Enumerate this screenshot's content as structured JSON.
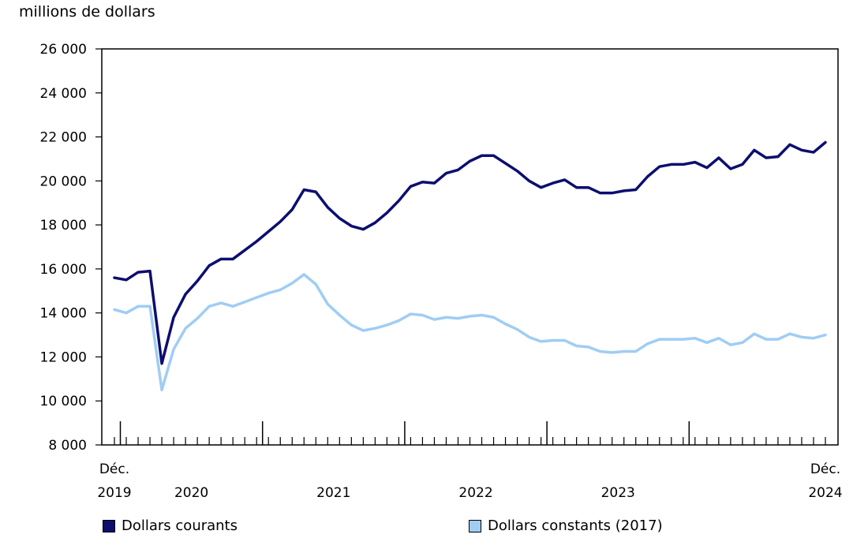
{
  "chart_data": {
    "type": "line",
    "title": "",
    "ylabel": "millions de dollars",
    "xlabel": "",
    "ylim": [
      8000,
      26000
    ],
    "ytick_values": [
      8000,
      10000,
      12000,
      14000,
      16000,
      18000,
      20000,
      22000,
      24000,
      26000
    ],
    "ytick_labels": [
      "8 000",
      "10 000",
      "12 000",
      "14 000",
      "16 000",
      "18 000",
      "20 000",
      "22 000",
      "24 000",
      "26 000"
    ],
    "x_start": "Déc. 2019",
    "x_end": "Déc. 2024",
    "n_months": 61,
    "year_labels": [
      {
        "label": "2020",
        "center_index": 6.5
      },
      {
        "label": "2021",
        "center_index": 18.5
      },
      {
        "label": "2022",
        "center_index": 30.5
      },
      {
        "label": "2023",
        "center_index": 42.5
      }
    ],
    "year_boundaries": [
      0.5,
      12.5,
      24.5,
      36.5,
      48.5
    ],
    "start_label": {
      "line1": "Déc.",
      "line2": "2019"
    },
    "end_label": {
      "line1": "Déc.",
      "line2": "2024"
    },
    "series": [
      {
        "name": "Dollars courants",
        "color": "#0d0e6e",
        "values": [
          15600,
          15500,
          15850,
          15900,
          11700,
          13800,
          14850,
          15450,
          16150,
          16450,
          16450,
          16850,
          17250,
          17700,
          18150,
          18700,
          19600,
          19500,
          18800,
          18300,
          17950,
          17800,
          18100,
          18550,
          19100,
          19750,
          19950,
          19900,
          20350,
          20500,
          20900,
          21150,
          21150,
          20800,
          20450,
          20000,
          19700,
          19900,
          20050,
          19700,
          19700,
          19450,
          19450,
          19550,
          19600,
          20200,
          20650,
          20750,
          20750,
          20850,
          20600,
          21050,
          20550,
          20750,
          21400,
          21050,
          21100,
          21650,
          21400,
          21300,
          21750
        ]
      },
      {
        "name": "Dollars constants (2017)",
        "color": "#9fcdf4",
        "values": [
          14150,
          14000,
          14300,
          14300,
          10500,
          12350,
          13300,
          13750,
          14300,
          14450,
          14300,
          14500,
          14700,
          14900,
          15050,
          15350,
          15750,
          15300,
          14400,
          13900,
          13450,
          13200,
          13300,
          13450,
          13650,
          13950,
          13900,
          13700,
          13800,
          13750,
          13850,
          13900,
          13800,
          13500,
          13250,
          12900,
          12700,
          12750,
          12750,
          12500,
          12450,
          12250,
          12200,
          12250,
          12250,
          12600,
          12800,
          12800,
          12800,
          12850,
          12650,
          12850,
          12550,
          12650,
          13050,
          12800,
          12800,
          13050,
          12900,
          12850,
          13000
        ]
      }
    ]
  }
}
